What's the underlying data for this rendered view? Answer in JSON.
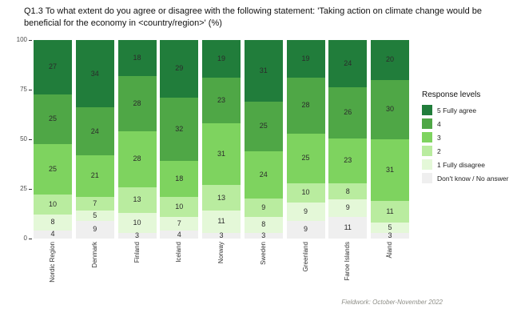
{
  "title": "Q1.3 To what extent do you agree or disagree with the following statement: 'Taking action on climate change would be beneficial for the economy in <country/region>' (%)",
  "footer": "Fieldwork: October-November 2022",
  "legend": {
    "title": "Response levels",
    "items": [
      {
        "label": "5 Fully agree",
        "color": "#217d3b"
      },
      {
        "label": "4",
        "color": "#4fa746"
      },
      {
        "label": "3",
        "color": "#7ed35f"
      },
      {
        "label": "2",
        "color": "#b9ec9f"
      },
      {
        "label": "1 Fully disagree",
        "color": "#e4f8d8"
      },
      {
        "label": "Don't know / No answer",
        "color": "#efefef"
      }
    ]
  },
  "chart_data": {
    "type": "bar",
    "stacked": true,
    "title": "Q1.3 To what extent do you agree or disagree with the following statement: 'Taking action on climate change would be beneficial for the economy in <country/region>' (%)",
    "xlabel": "",
    "ylabel": "",
    "ylim": [
      0,
      100
    ],
    "yticks": [
      0,
      25,
      50,
      75,
      100
    ],
    "grid": false,
    "legend_position": "right",
    "categories": [
      "Nordic Region",
      "Denmark",
      "Finland",
      "Iceland",
      "Norway",
      "Sweden",
      "Greenland",
      "Faroe Islands",
      "Åland"
    ],
    "series": [
      {
        "name": "5 Fully agree",
        "color": "#217d3b",
        "values": [
          27,
          34,
          18,
          29,
          19,
          31,
          19,
          24,
          20
        ]
      },
      {
        "name": "4",
        "color": "#4fa746",
        "values": [
          25,
          24,
          28,
          32,
          23,
          25,
          28,
          26,
          30
        ]
      },
      {
        "name": "3",
        "color": "#7ed35f",
        "values": [
          25,
          21,
          28,
          18,
          31,
          24,
          25,
          23,
          31
        ]
      },
      {
        "name": "2",
        "color": "#b9ec9f",
        "values": [
          10,
          7,
          13,
          10,
          13,
          9,
          10,
          8,
          11
        ]
      },
      {
        "name": "1 Fully disagree",
        "color": "#e4f8d8",
        "values": [
          8,
          5,
          10,
          7,
          11,
          8,
          9,
          9,
          5
        ]
      },
      {
        "name": "Don't know / No answer",
        "color": "#efefef",
        "values": [
          4,
          9,
          3,
          4,
          3,
          3,
          9,
          11,
          3
        ]
      }
    ]
  }
}
